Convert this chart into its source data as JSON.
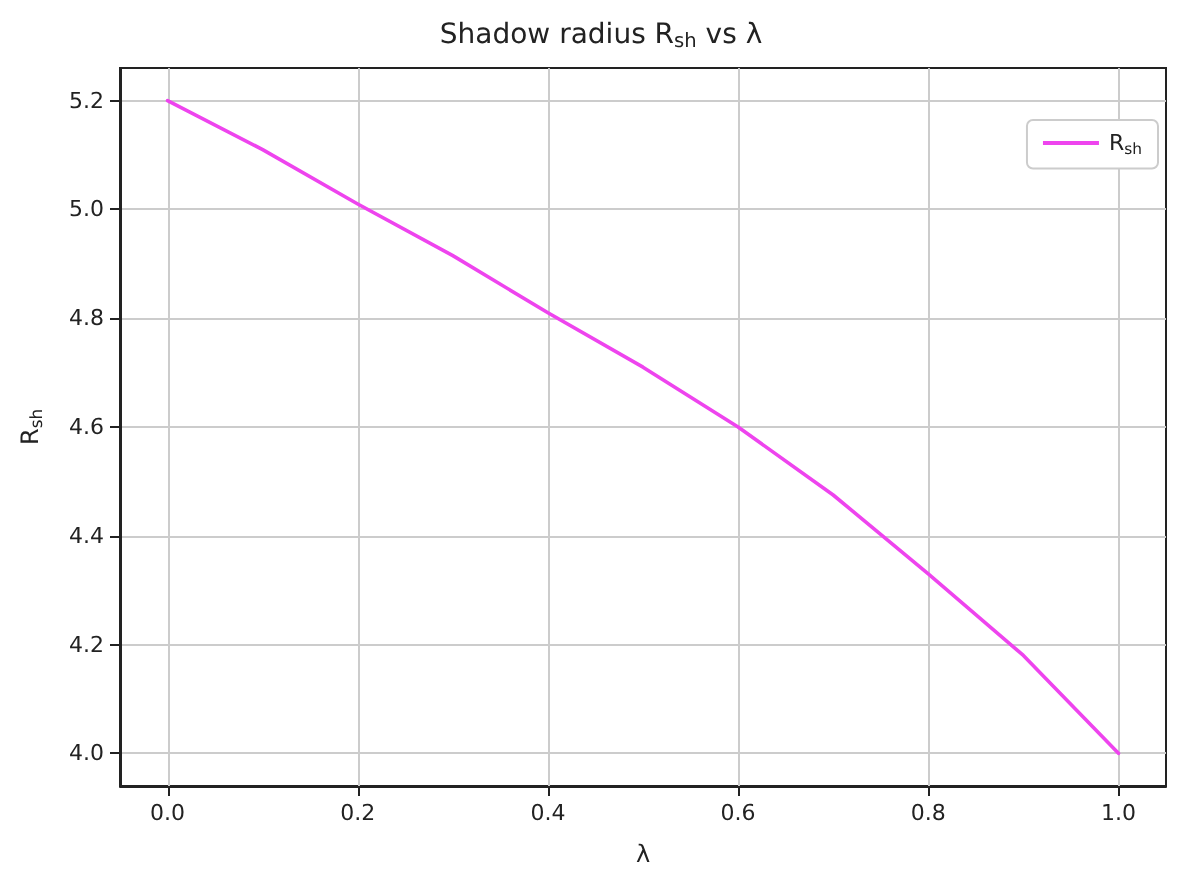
{
  "chart_data": {
    "type": "line",
    "title": "Shadow radius R$_{sh}$ vs λ",
    "xlabel": "λ",
    "ylabel": "R$_{sh}$",
    "x": [
      0,
      0.1,
      0.2,
      0.3,
      0.4,
      0.5,
      0.6,
      0.7,
      0.8,
      0.9,
      1.0
    ],
    "series": [
      {
        "name": "R$_{sh}$",
        "color": "#ee44ee",
        "values": [
          5.2,
          5.11,
          5.01,
          4.915,
          4.81,
          4.71,
          4.6,
          4.475,
          4.33,
          4.18,
          4.0
        ]
      }
    ],
    "xlim": [
      -0.05,
      1.05
    ],
    "xticks": [
      {
        "value": 0,
        "label": "0.0"
      },
      0.2,
      0.4,
      0.6,
      0.8,
      {
        "value": 1,
        "label": "1.0"
      }
    ],
    "ylim": [
      3.94,
      5.26
    ],
    "yticks": [
      {
        "value": 4,
        "label": "4.0"
      },
      4.2,
      4.4,
      4.6,
      4.8,
      {
        "value": 5,
        "label": "5.0"
      },
      5.2
    ],
    "grid": true,
    "legend": "top right",
    "marker": "none",
    "line_style": "solid"
  }
}
